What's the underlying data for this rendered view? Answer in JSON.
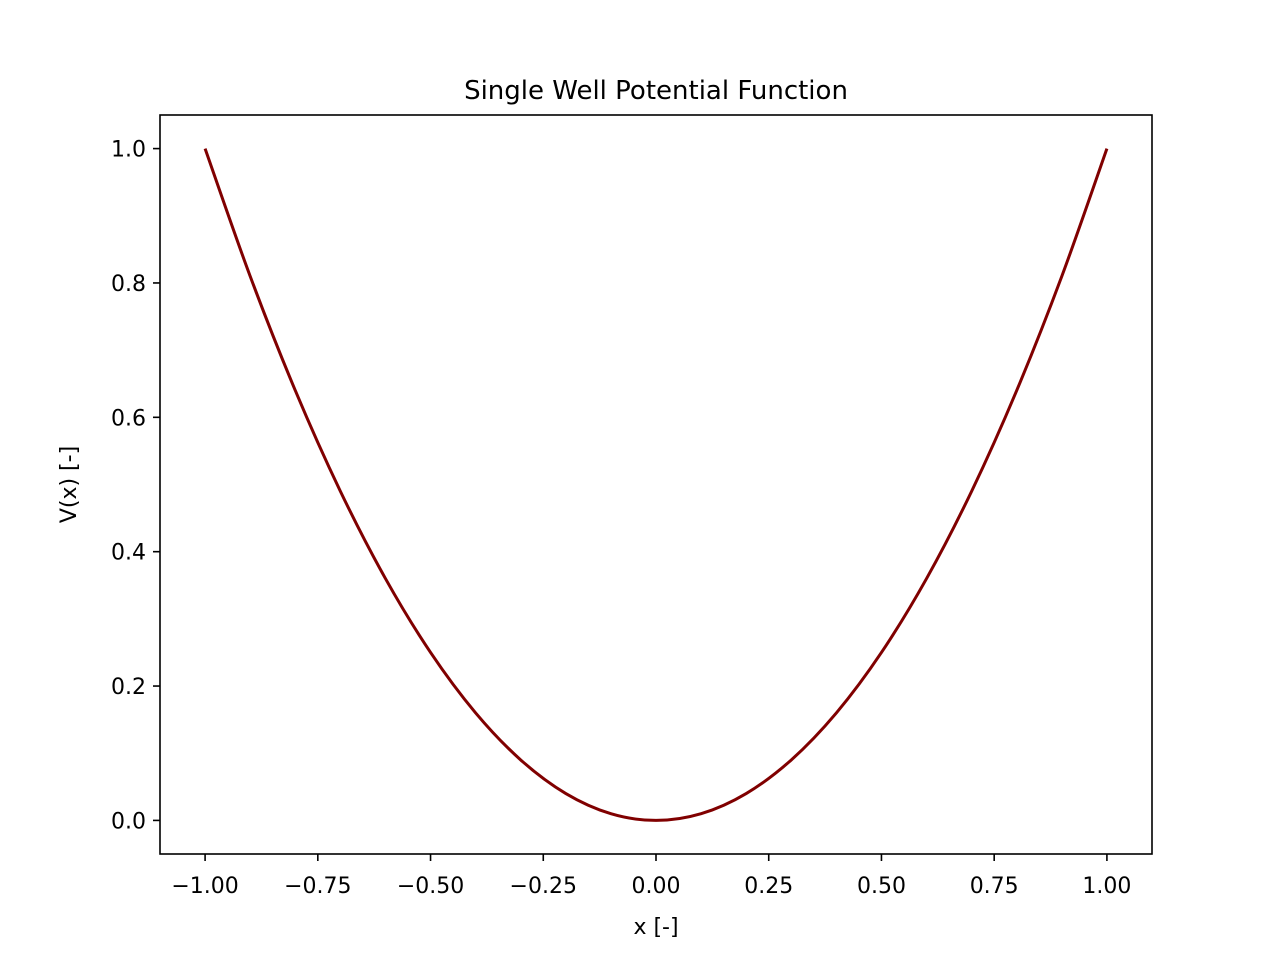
{
  "chart_data": {
    "type": "line",
    "title": "Single Well Potential Function",
    "xlabel": "x [-]",
    "ylabel": "V(x) [-]",
    "xlim": [
      -1.1,
      1.1
    ],
    "ylim": [
      -0.05,
      1.05
    ],
    "x_ticks": [
      -1.0,
      -0.75,
      -0.5,
      -0.25,
      0.0,
      0.25,
      0.5,
      0.75,
      1.0
    ],
    "x_tick_labels": [
      "−1.00",
      "−0.75",
      "−0.50",
      "−0.25",
      "0.00",
      "0.25",
      "0.50",
      "0.75",
      "1.00"
    ],
    "y_ticks": [
      0.0,
      0.2,
      0.4,
      0.6,
      0.8,
      1.0
    ],
    "y_tick_labels": [
      "0.0",
      "0.2",
      "0.4",
      "0.6",
      "0.8",
      "1.0"
    ],
    "grid": false,
    "series": [
      {
        "color": "#800000",
        "x": [
          -1.0,
          -0.9,
          -0.8,
          -0.7,
          -0.6,
          -0.5,
          -0.4,
          -0.3,
          -0.2,
          -0.1,
          0.0,
          0.1,
          0.2,
          0.3,
          0.4,
          0.5,
          0.6,
          0.7,
          0.8,
          0.9,
          1.0
        ],
        "y": [
          1.0,
          0.81,
          0.64,
          0.49,
          0.36,
          0.25,
          0.16,
          0.09,
          0.04,
          0.01,
          0.0,
          0.01,
          0.04,
          0.09,
          0.16,
          0.25,
          0.36,
          0.49,
          0.64,
          0.81,
          1.0
        ]
      }
    ]
  }
}
